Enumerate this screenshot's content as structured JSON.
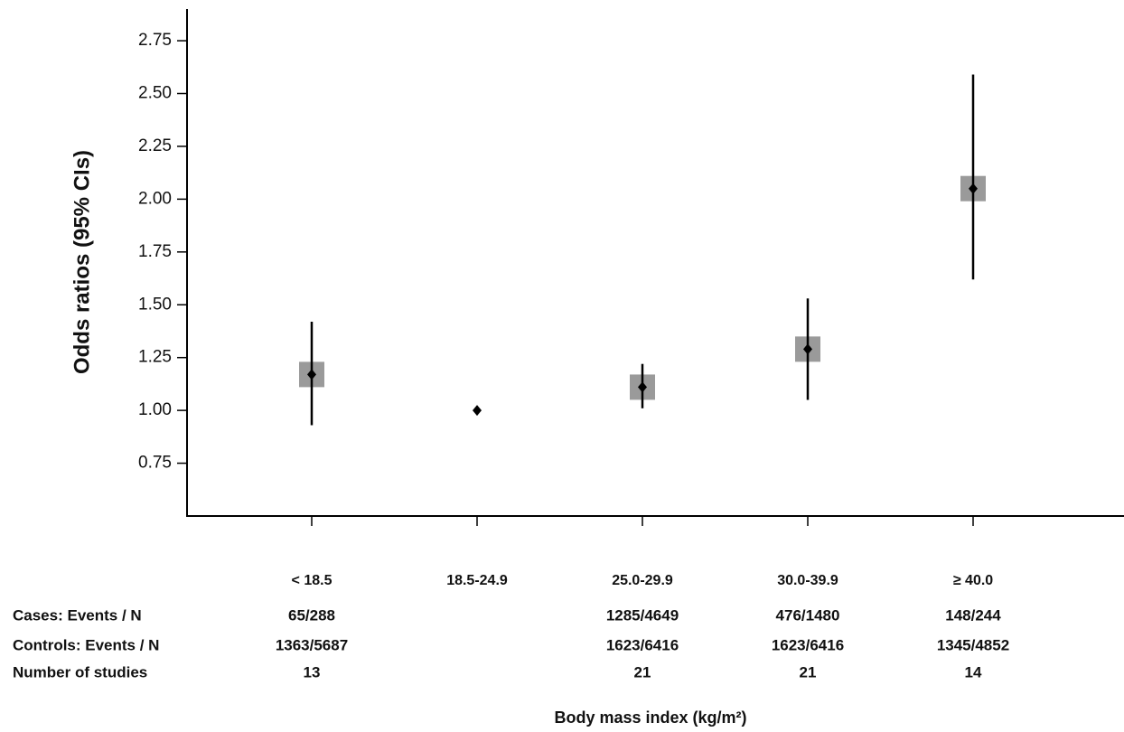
{
  "chart_data": {
    "type": "forest",
    "y_label": "Odds ratios (95% CIs)",
    "x_label": "Body mass index (kg/m²)",
    "categories": [
      "< 18.5",
      "18.5-24.9",
      "25.0-29.9",
      "30.0-39.9",
      "≥ 40.0"
    ],
    "values": [
      1.17,
      1.0,
      1.11,
      1.29,
      2.05
    ],
    "lower": [
      0.93,
      null,
      1.01,
      1.05,
      1.62
    ],
    "upper": [
      1.42,
      null,
      1.22,
      1.53,
      2.59
    ],
    "color": "#000000",
    "box_color": "#9a9a9a",
    "ylim": [
      0.5,
      2.9
    ],
    "yticks": [
      {
        "value": 0.75,
        "label": "0.75"
      },
      {
        "value": 1,
        "label": "1.00"
      },
      {
        "value": 1.25,
        "label": "1.25"
      },
      {
        "value": 1.5,
        "label": "1.50"
      },
      {
        "value": 1.75,
        "label": "1.75"
      },
      {
        "value": 2,
        "label": "2.00"
      },
      {
        "value": 2.25,
        "label": "2.25"
      },
      {
        "value": 2.5,
        "label": "2.50"
      },
      {
        "value": 2.75,
        "label": "2.75"
      }
    ],
    "table": {
      "row_labels": [
        "Cases: Events / N",
        "Controls: Events / N",
        "Number of studies"
      ],
      "rows": [
        [
          "65/288",
          null,
          "1285/4649",
          "476/1480",
          "148/244"
        ],
        [
          "1363/5687",
          null,
          "1623/6416",
          "1623/6416",
          "1345/4852"
        ],
        [
          13,
          null,
          21,
          21,
          14
        ]
      ]
    }
  }
}
